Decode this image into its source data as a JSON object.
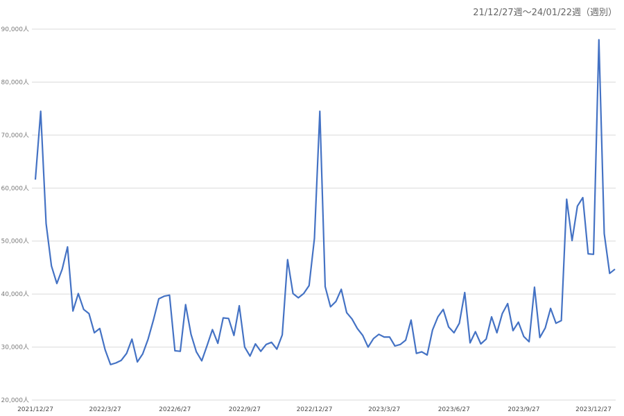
{
  "chart_data": {
    "type": "line",
    "title": "21/12/27週～24/01/22週（週別）",
    "xlabel": "",
    "ylabel": "",
    "ylim": [
      20000,
      90000
    ],
    "y_ticks": [
      "20,000人",
      "30,000人",
      "40,000人",
      "50,000人",
      "60,000人",
      "70,000人",
      "80,000人",
      "90,000人"
    ],
    "x_tick_labels": [
      "2021/12/27",
      "2022/3/27",
      "2022/6/27",
      "2022/9/27",
      "2022/12/27",
      "2023/3/27",
      "2023/6/27",
      "2023/9/27",
      "2023/12/27"
    ],
    "grid": true,
    "legend": "none",
    "line_color": "#4472c4",
    "series": [
      {
        "values": [
          61600,
          74500,
          53300,
          45300,
          42000,
          44700,
          48900,
          36800,
          40100,
          37100,
          36300,
          32700,
          33500,
          29500,
          26700,
          27000,
          27500,
          28800,
          31500,
          27200,
          28700,
          31500,
          35100,
          39100,
          39600,
          39800,
          29300,
          29200,
          38000,
          32400,
          29100,
          27400,
          30300,
          33300,
          30700,
          35500,
          35400,
          32200,
          37800,
          30000,
          28300,
          30600,
          29200,
          30500,
          30900,
          29600,
          32300,
          46500,
          40100,
          39300,
          40100,
          41600,
          50500,
          74500,
          41400,
          37600,
          38600,
          40900,
          36500,
          35300,
          33500,
          32200,
          30000,
          31600,
          32400,
          31900,
          31900,
          30200,
          30500,
          31300,
          35100,
          28800,
          29100,
          28500,
          33200,
          35700,
          37100,
          33800,
          32700,
          34500,
          40300,
          30800,
          32900,
          30600,
          31500,
          35700,
          32700,
          36300,
          38200,
          33100,
          34700,
          32000,
          31000,
          41300,
          31800,
          33600,
          37300,
          34500,
          35000,
          57900,
          50100,
          56600,
          58200,
          47600,
          47500,
          88000,
          51400,
          43900,
          44700
        ]
      }
    ]
  }
}
